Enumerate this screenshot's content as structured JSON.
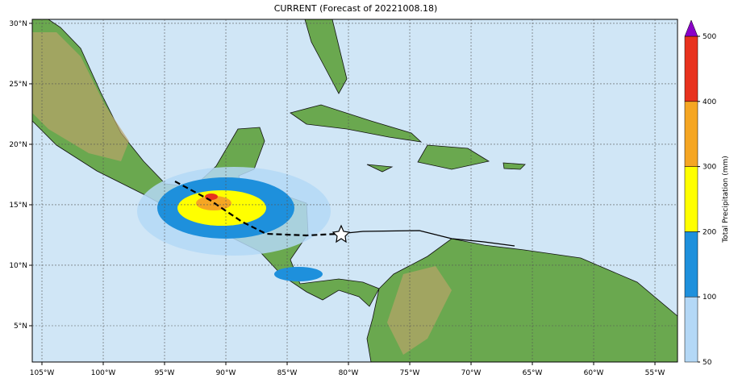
{
  "map": {
    "title": "CURRENT (Forecast of 20221008.18)",
    "xlim": [
      -105.79,
      -53.16
    ],
    "ylim": [
      2.0,
      30.33
    ],
    "xticks": [
      {
        "value": -105,
        "label": "105°W"
      },
      {
        "value": -100,
        "label": "100°W"
      },
      {
        "value": -95,
        "label": "95°W"
      },
      {
        "value": -90,
        "label": "90°W"
      },
      {
        "value": -85,
        "label": "85°W"
      },
      {
        "value": -80,
        "label": "80°W"
      },
      {
        "value": -75,
        "label": "75°W"
      },
      {
        "value": -70,
        "label": "70°W"
      },
      {
        "value": -65,
        "label": "65°W"
      },
      {
        "value": -60,
        "label": "60°W"
      },
      {
        "value": -55,
        "label": "55°W"
      }
    ],
    "yticks": [
      {
        "value": 5,
        "label": "5°N"
      },
      {
        "value": 10,
        "label": "10°N"
      },
      {
        "value": 15,
        "label": "15°N"
      },
      {
        "value": 20,
        "label": "20°N"
      },
      {
        "value": 25,
        "label": "25°N"
      },
      {
        "value": 30,
        "label": "30°N"
      }
    ],
    "grid": true,
    "colorbar": {
      "label": "Total Precipitation (mm)",
      "levels": [
        50,
        100,
        200,
        300,
        400,
        500
      ],
      "colors": [
        "#b4d8f6",
        "#1e90dc",
        "#ffff00",
        "#f5a623",
        "#e8321e"
      ],
      "extend_color": "#8a00c8"
    }
  }
}
